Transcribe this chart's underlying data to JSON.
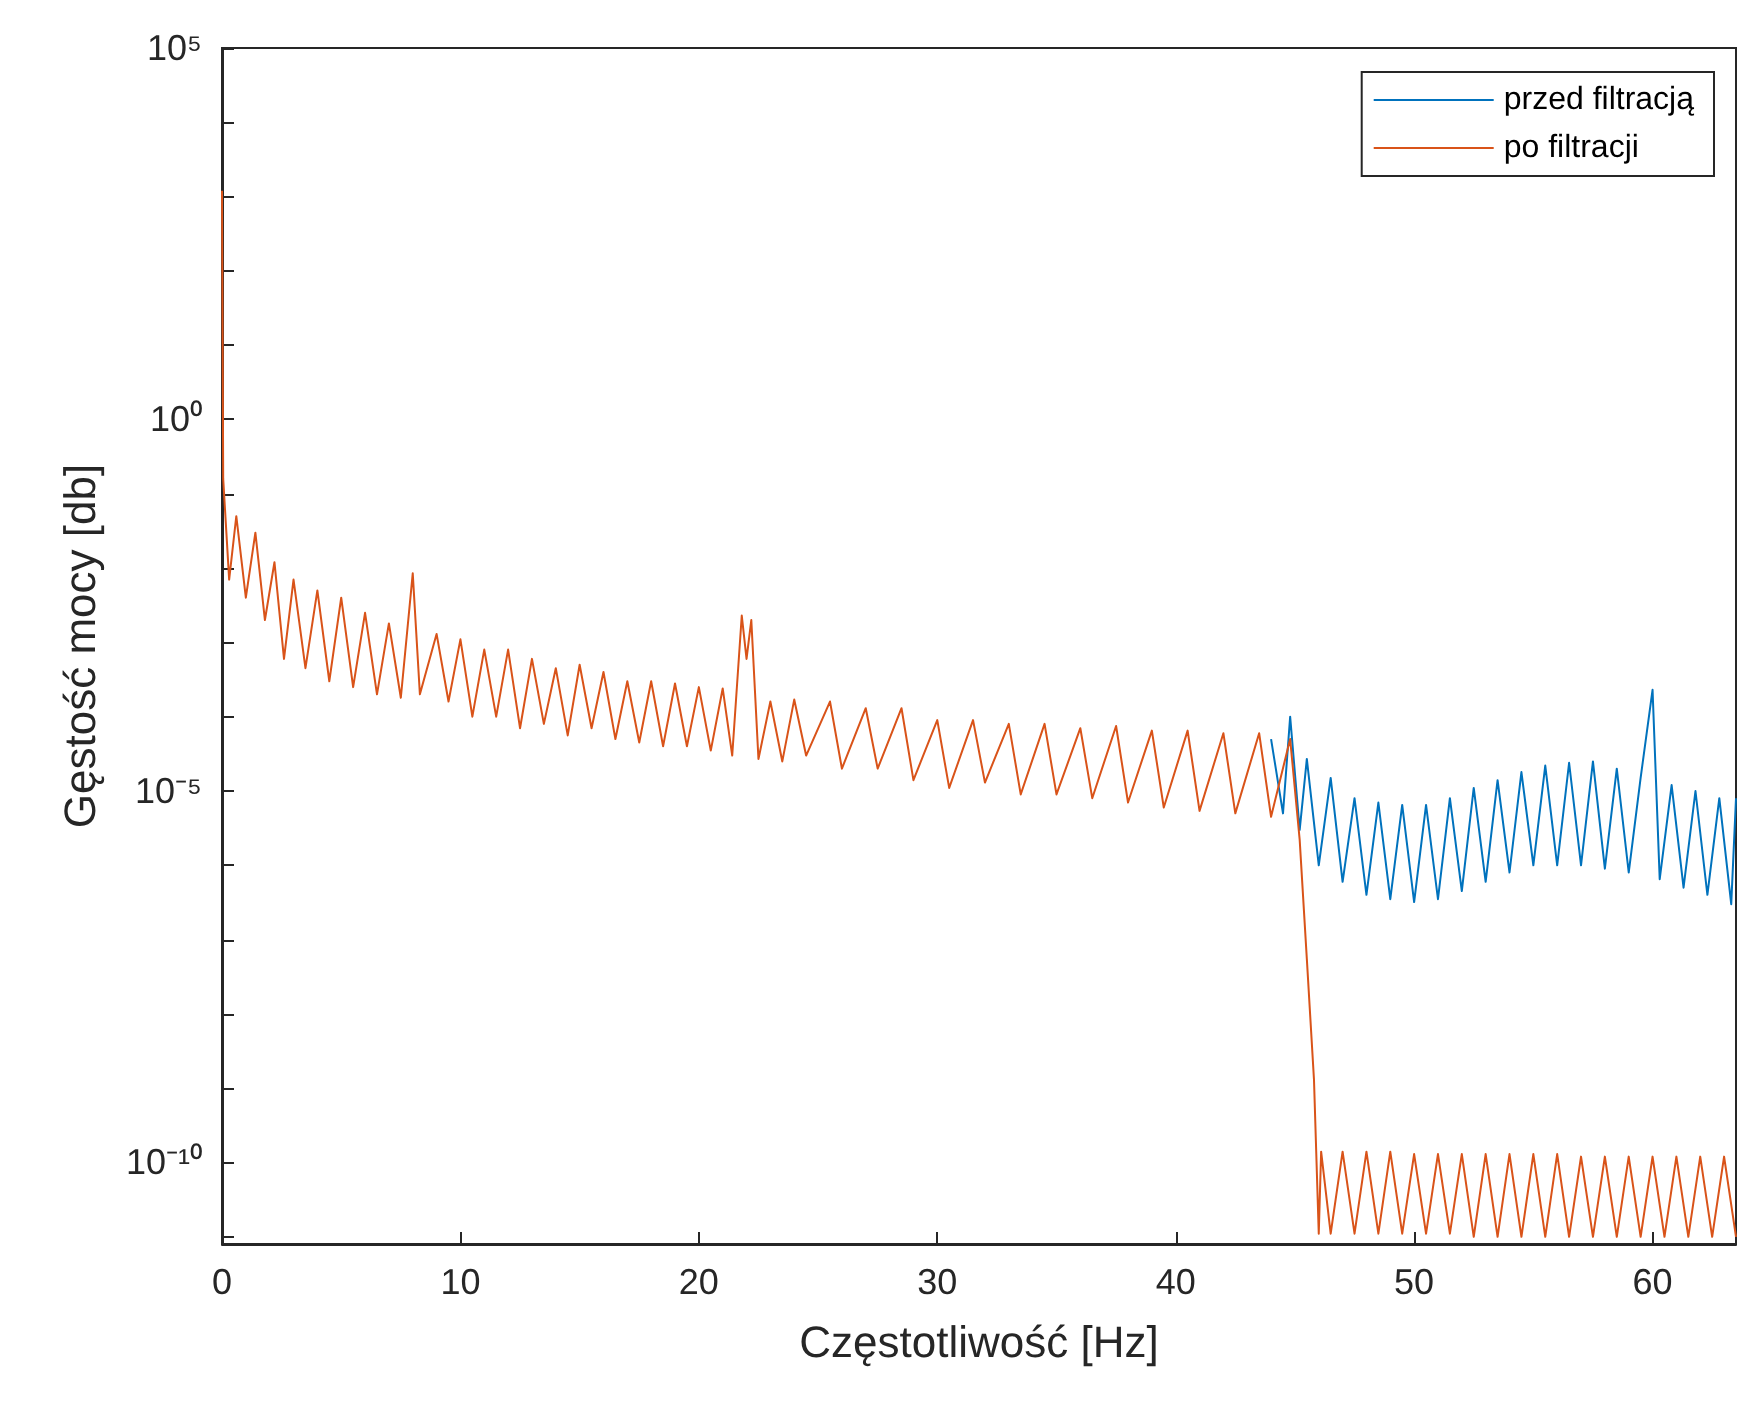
{
  "chart_data": {
    "type": "line",
    "xlabel": "Częstotliwość [Hz]",
    "ylabel": "Gęstość mocy [db]",
    "xlim": [
      0,
      63.5
    ],
    "xticks": [
      0,
      10,
      20,
      30,
      40,
      50,
      60
    ],
    "ylim": [
      8e-12,
      100000
    ],
    "log": "y",
    "yticks": [
      {
        "value": 100000,
        "label": "10⁵"
      },
      {
        "value": 10000,
        "label": null
      },
      {
        "value": 1000,
        "label": null
      },
      {
        "value": 100,
        "label": null
      },
      {
        "value": 10,
        "label": null
      },
      {
        "value": 1,
        "label": "10⁰"
      },
      {
        "value": 0.1,
        "label": null
      },
      {
        "value": 0.01,
        "label": null
      },
      {
        "value": 0.001,
        "label": null
      },
      {
        "value": 0.0001,
        "label": null
      },
      {
        "value": 1e-05,
        "label": "10⁻⁵"
      },
      {
        "value": 1e-06,
        "label": null
      },
      {
        "value": 1e-07,
        "label": null
      },
      {
        "value": 1e-08,
        "label": null
      },
      {
        "value": 1e-09,
        "label": null
      },
      {
        "value": 1e-10,
        "label": "10⁻¹⁰"
      },
      {
        "value": 1e-11,
        "label": null
      }
    ],
    "grid": false,
    "legend": "top right",
    "marker": "none",
    "line_style": "solid",
    "series": [
      {
        "name": "przed filtracją",
        "color": "#0072bd",
        "x": [
          44.0,
          44.5,
          44.8,
          45.2,
          45.5,
          46,
          46.5,
          47,
          47.5,
          48,
          48.5,
          49,
          49.5,
          50,
          50.5,
          51,
          51.5,
          52,
          52.5,
          53,
          53.5,
          54,
          54.5,
          55,
          55.5,
          56,
          56.5,
          57,
          57.5,
          58,
          58.5,
          59,
          59.5,
          60,
          60.3,
          60.8,
          61.3,
          61.8,
          62.3,
          62.8,
          63.3,
          63.5
        ],
        "values": [
          5e-05,
          5e-06,
          0.0001,
          3e-06,
          2.7e-05,
          1e-06,
          1.5e-05,
          6e-07,
          8e-06,
          4e-07,
          7e-06,
          3.5e-07,
          6.5e-06,
          3.2e-07,
          6.5e-06,
          3.5e-07,
          8e-06,
          4.5e-07,
          1.1e-05,
          6e-07,
          1.4e-05,
          8e-07,
          1.8e-05,
          1e-06,
          2.2e-05,
          1e-06,
          2.4e-05,
          1e-06,
          2.5e-05,
          9e-07,
          2e-05,
          8e-07,
          1.5e-05,
          0.00023,
          6.5e-07,
          1.2e-05,
          5e-07,
          1e-05,
          4e-07,
          8e-06,
          3e-07,
          8e-06
        ]
      },
      {
        "name": "po filtracji",
        "color": "#d95319",
        "x": [
          0,
          0.05,
          0.3,
          0.6,
          1.0,
          1.4,
          1.8,
          2.2,
          2.6,
          3.0,
          3.5,
          4.0,
          4.5,
          5.0,
          5.5,
          6.0,
          6.5,
          7.0,
          7.5,
          8.0,
          8.3,
          9.0,
          9.5,
          10,
          10.5,
          11,
          11.5,
          12,
          12.5,
          13,
          13.5,
          14,
          14.5,
          15,
          15.5,
          16,
          16.5,
          17,
          17.5,
          18,
          18.5,
          19,
          19.5,
          20,
          20.5,
          21,
          21.4,
          21.8,
          22.0,
          22.2,
          22.5,
          23,
          23.5,
          24,
          24.5,
          25.5,
          26,
          27,
          27.5,
          28.5,
          29,
          30,
          30.5,
          31.5,
          32,
          33,
          33.5,
          34.5,
          35,
          36,
          36.5,
          37.5,
          38,
          39,
          39.5,
          40.5,
          41,
          42,
          42.5,
          43.5,
          44,
          44.8,
          45.2,
          45.5,
          45.8,
          46.0,
          46.1,
          46.5,
          47,
          47.5,
          48,
          48.5,
          49,
          49.5,
          50,
          50.5,
          51,
          51.5,
          52,
          52.5,
          53,
          53.5,
          54,
          54.5,
          55,
          55.5,
          56,
          56.5,
          57,
          57.5,
          58,
          58.5,
          59,
          59.5,
          60,
          60.5,
          61,
          61.5,
          62,
          62.5,
          63,
          63.5
        ],
        "values": [
          1200,
          0.16,
          0.007,
          0.05,
          0.004,
          0.03,
          0.002,
          0.012,
          0.0006,
          0.007,
          0.00045,
          0.005,
          0.0003,
          0.004,
          0.00025,
          0.0025,
          0.0002,
          0.0018,
          0.00018,
          0.0085,
          0.0002,
          0.0013,
          0.00016,
          0.0011,
          0.0001,
          0.0008,
          0.0001,
          0.0008,
          7e-05,
          0.0006,
          8e-05,
          0.00045,
          5.6e-05,
          0.0005,
          7e-05,
          0.0004,
          5e-05,
          0.0003,
          4.5e-05,
          0.0003,
          4e-05,
          0.00028,
          4e-05,
          0.00025,
          3.5e-05,
          0.00024,
          3e-05,
          0.0023,
          0.0006,
          0.002,
          2.7e-05,
          0.00016,
          2.5e-05,
          0.00017,
          3e-05,
          0.00016,
          2e-05,
          0.00013,
          2e-05,
          0.00013,
          1.4e-05,
          9e-05,
          1.1e-05,
          9e-05,
          1.3e-05,
          8e-05,
          9e-06,
          8e-05,
          9e-06,
          7e-05,
          8e-06,
          7.5e-05,
          7e-06,
          6.5e-05,
          6e-06,
          6.5e-05,
          5.4e-06,
          6e-05,
          5e-06,
          6e-05,
          4.5e-06,
          5e-05,
          2.2e-06,
          5.5e-08,
          1.3e-09,
          1.1e-11,
          1.4e-10,
          1.1e-11,
          1.4e-10,
          1.1e-11,
          1.4e-10,
          1.1e-11,
          1.4e-10,
          1.1e-11,
          1.3e-10,
          1.1e-11,
          1.3e-10,
          1.1e-11,
          1.3e-10,
          1e-11,
          1.3e-10,
          1e-11,
          1.3e-10,
          1e-11,
          1.3e-10,
          1e-11,
          1.3e-10,
          1e-11,
          1.2e-10,
          1e-11,
          1.2e-10,
          1e-11,
          1.2e-10,
          1e-11,
          1.2e-10,
          1e-11,
          1.2e-10,
          1e-11,
          1.2e-10,
          1e-11,
          1.2e-10,
          1e-11
        ]
      }
    ]
  }
}
